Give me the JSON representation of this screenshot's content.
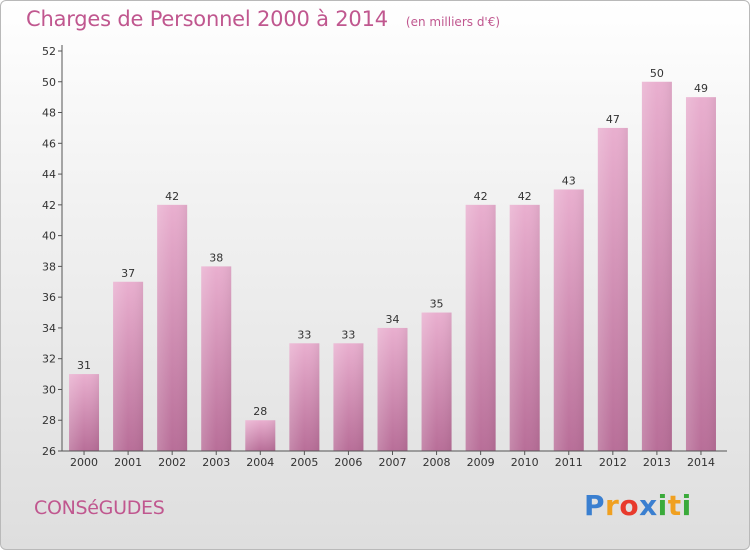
{
  "header": {
    "title": "Charges de Personnel 2000 à 2014",
    "unit": "(en milliers d'€)"
  },
  "footer": {
    "commune": "CONSéGUDES",
    "logo": {
      "letters": [
        "P",
        "r",
        "o",
        "x",
        "i",
        "t",
        "i"
      ],
      "colors": [
        "#3a7fd0",
        "#f0a020",
        "#e83a2c",
        "#3a7fd0",
        "#3aaa3a",
        "#f0a020",
        "#3aaa3a"
      ]
    }
  },
  "colors": {
    "bar": "#d98bb5",
    "bar_light": "#e9afcf",
    "bar_dark": "#b86e98",
    "title": "#c0578f"
  },
  "chart_data": {
    "type": "bar",
    "categories": [
      "2000",
      "2001",
      "2002",
      "2003",
      "2004",
      "2005",
      "2006",
      "2007",
      "2008",
      "2009",
      "2010",
      "2011",
      "2012",
      "2013",
      "2014"
    ],
    "values": [
      31,
      37,
      42,
      38,
      28,
      33,
      33,
      34,
      35,
      42,
      42,
      43,
      47,
      50,
      49
    ],
    "ylim": [
      26,
      52
    ],
    "yticks": [
      26,
      28,
      30,
      32,
      34,
      36,
      38,
      40,
      42,
      44,
      46,
      48,
      50,
      52
    ],
    "grid": false
  }
}
